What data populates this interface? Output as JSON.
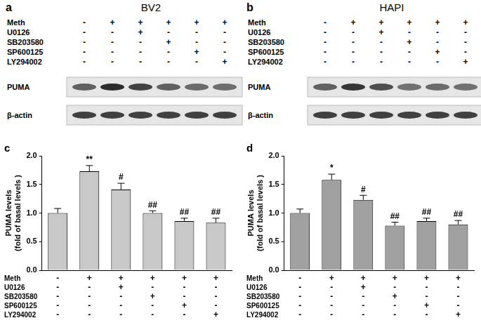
{
  "blots": [
    {
      "panel": "a",
      "title": "BV2",
      "bands": [
        "PUMA",
        "β-actin"
      ],
      "treatments": [
        {
          "name": "Meth",
          "signs": [
            "-",
            "+",
            "+",
            "+",
            "+",
            "+"
          ]
        },
        {
          "name": "U0126",
          "signs": [
            "-",
            "-",
            "+",
            "-",
            "-",
            "-"
          ]
        },
        {
          "name": "SB203580",
          "signs": [
            "-",
            "-",
            "-",
            "+",
            "-",
            "-"
          ]
        },
        {
          "name": "SP600125",
          "signs": [
            "-",
            "-",
            "-",
            "-",
            "+",
            "-"
          ]
        },
        {
          "name": "LY294002",
          "signs": [
            "-",
            "-",
            "-",
            "-",
            "-",
            "+"
          ]
        }
      ]
    },
    {
      "panel": "b",
      "title": "HAPI",
      "bands": [
        "PUMA",
        "β-actin"
      ],
      "treatments": [
        {
          "name": "Meth",
          "signs": [
            "-",
            "+",
            "+",
            "+",
            "+",
            "+"
          ]
        },
        {
          "name": "U0126",
          "signs": [
            "-",
            "-",
            "+",
            "-",
            "-",
            "-"
          ]
        },
        {
          "name": "SB203580",
          "signs": [
            "-",
            "-",
            "-",
            "+",
            "-",
            "-"
          ]
        },
        {
          "name": "SP600125",
          "signs": [
            "-",
            "-",
            "-",
            "-",
            "+",
            "-"
          ]
        },
        {
          "name": "LY294002",
          "signs": [
            "-",
            "-",
            "-",
            "-",
            "-",
            "+"
          ]
        }
      ]
    }
  ],
  "chart_data": [
    {
      "type": "bar",
      "title": "c",
      "y_label": [
        "PUMA levels",
        "(fold of basal levels )"
      ],
      "categories": [
        null,
        null,
        null,
        null,
        null,
        null
      ],
      "values": [
        1.0,
        1.73,
        1.41,
        1.0,
        0.86,
        0.83
      ],
      "errors": [
        0.08,
        0.1,
        0.11,
        0.04,
        0.05,
        0.08
      ],
      "annotations": [
        null,
        "**",
        "#",
        "##",
        "##",
        "##"
      ],
      "color": "#c8c8c8",
      "ylim": [
        0,
        2
      ],
      "yticks": [
        {
          "value": 0,
          "label": "0.0"
        },
        {
          "value": 0.5,
          "label": "0.5"
        },
        {
          "value": 1,
          "label": "1.0"
        },
        {
          "value": 1.5,
          "label": "1.5"
        },
        {
          "value": 2,
          "label": "2.0"
        }
      ],
      "grid": false,
      "treatments": [
        {
          "name": "Meth",
          "signs": [
            "-",
            "+",
            "+",
            "+",
            "+",
            "+"
          ]
        },
        {
          "name": "U0126",
          "signs": [
            "-",
            "-",
            "+",
            "-",
            "-",
            "-"
          ]
        },
        {
          "name": "SB203580",
          "signs": [
            "-",
            "-",
            "-",
            "+",
            "-",
            "-"
          ]
        },
        {
          "name": "SP600125",
          "signs": [
            "-",
            "-",
            "-",
            "-",
            "+",
            "-"
          ]
        },
        {
          "name": "LY294002",
          "signs": [
            "-",
            "-",
            "-",
            "-",
            "-",
            "+"
          ]
        }
      ]
    },
    {
      "type": "bar",
      "title": "d",
      "y_label": [
        "PUMA levels",
        "(fold of basal levels )"
      ],
      "categories": [
        null,
        null,
        null,
        null,
        null,
        null
      ],
      "values": [
        1.0,
        1.58,
        1.23,
        0.78,
        0.86,
        0.8
      ],
      "errors": [
        0.07,
        0.1,
        0.08,
        0.06,
        0.05,
        0.07
      ],
      "annotations": [
        null,
        "*",
        "#",
        "##",
        "##",
        "##"
      ],
      "color": "#a0a0a0",
      "ylim": [
        0,
        2
      ],
      "yticks": [
        {
          "value": 0,
          "label": "0.0"
        },
        {
          "value": 0.5,
          "label": "0.5"
        },
        {
          "value": 1,
          "label": "1.0"
        },
        {
          "value": 1.5,
          "label": "1.5"
        },
        {
          "value": 2,
          "label": "2.0"
        }
      ],
      "grid": false,
      "treatments": [
        {
          "name": "Meth",
          "signs": [
            "-",
            "+",
            "+",
            "+",
            "+",
            "+"
          ]
        },
        {
          "name": "U0126",
          "signs": [
            "-",
            "-",
            "+",
            "-",
            "-",
            "-"
          ]
        },
        {
          "name": "SB203580",
          "signs": [
            "-",
            "-",
            "-",
            "+",
            "-",
            "-"
          ]
        },
        {
          "name": "SP600125",
          "signs": [
            "-",
            "-",
            "-",
            "-",
            "+",
            "-"
          ]
        },
        {
          "name": "LY294002",
          "signs": [
            "-",
            "-",
            "-",
            "-",
            "-",
            "+"
          ]
        }
      ]
    }
  ]
}
